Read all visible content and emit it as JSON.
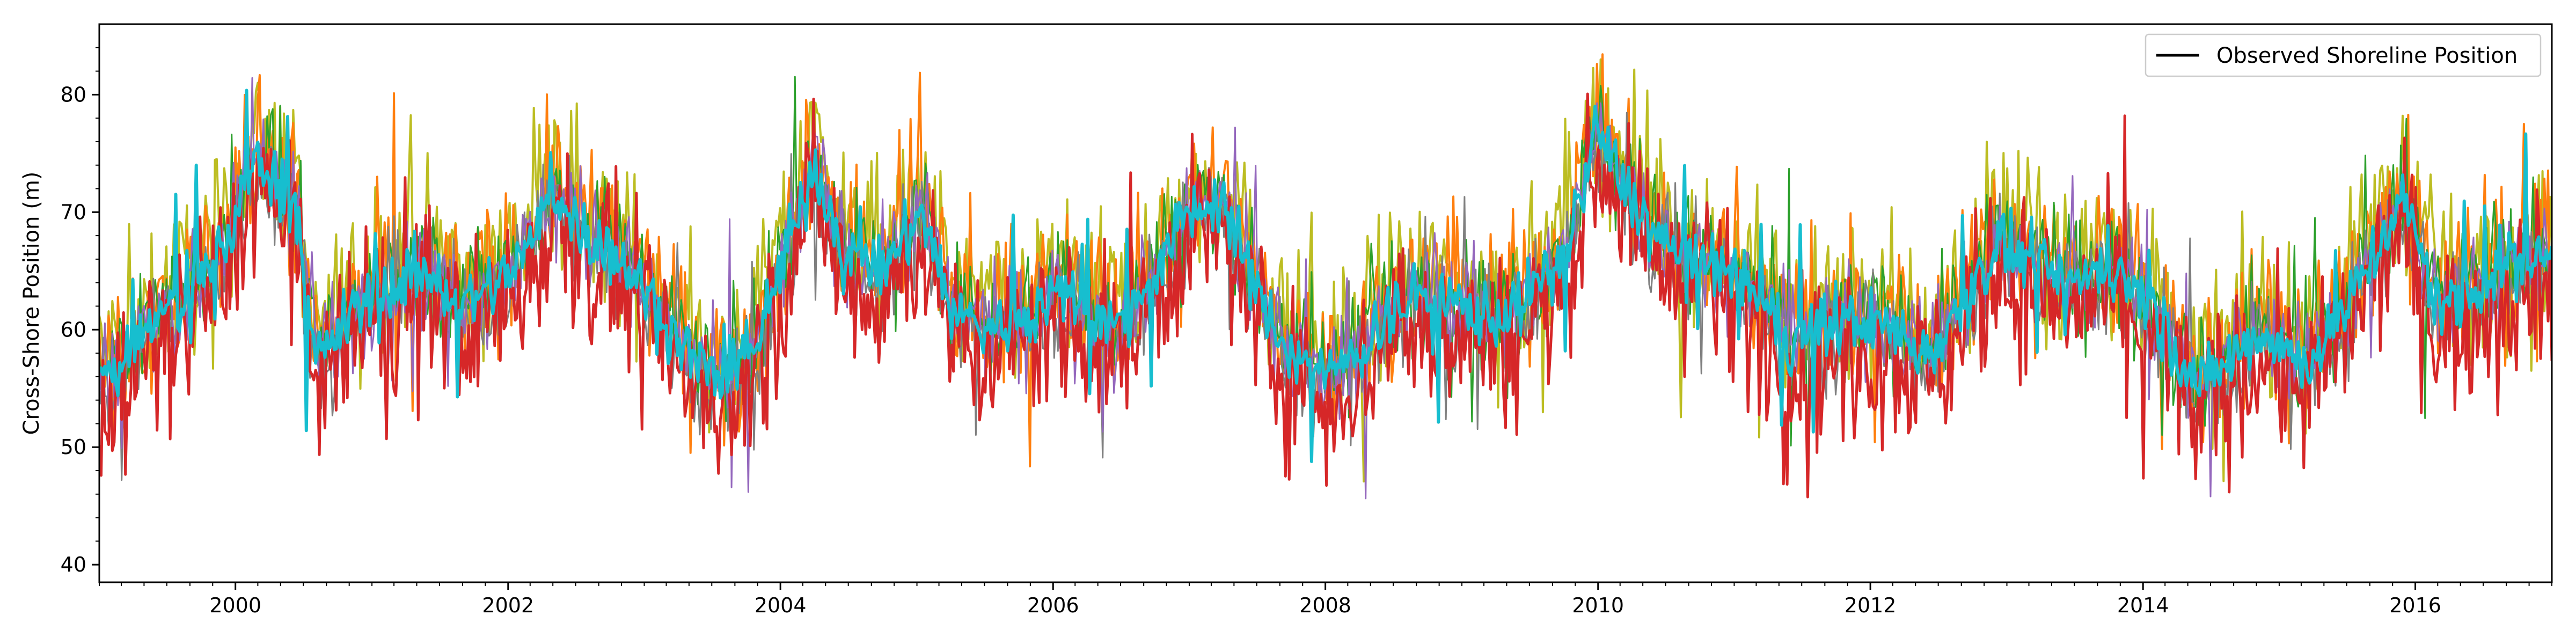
{
  "chart_data": {
    "type": "line",
    "title": "",
    "xlabel": "",
    "ylabel": "Cross-Shore Position (m)",
    "xlim": [
      "1999-01-01",
      "2017-01-01"
    ],
    "ylim": [
      38.5,
      86
    ],
    "x_ticks": [
      "2000",
      "2002",
      "2004",
      "2006",
      "2008",
      "2010",
      "2012",
      "2014",
      "2016"
    ],
    "y_ticks": [
      40,
      50,
      60,
      70,
      80
    ],
    "grid": false,
    "legend": {
      "position": "top-right",
      "entries": [
        "Observed Shoreline Position"
      ]
    },
    "series_colors": [
      "#bcbd22",
      "#ff7f0e",
      "#2ca02c",
      "#7f7f7f",
      "#9467bd",
      "#d62728",
      "#17becf"
    ],
    "centerline": [
      [
        "1999-01-01",
        56
      ],
      [
        "1999-03-01",
        57
      ],
      [
        "1999-06-01",
        61
      ],
      [
        "1999-09-01",
        63
      ],
      [
        "1999-12-01",
        67
      ],
      [
        "2000-01-15",
        71
      ],
      [
        "2000-03-01",
        75
      ],
      [
        "2000-05-01",
        72
      ],
      [
        "2000-06-15",
        70
      ],
      [
        "2000-08-01",
        57
      ],
      [
        "2000-10-01",
        60
      ],
      [
        "2000-12-01",
        62
      ],
      [
        "2001-03-01",
        64
      ],
      [
        "2001-06-01",
        65
      ],
      [
        "2001-09-01",
        62
      ],
      [
        "2001-12-01",
        64
      ],
      [
        "2002-03-01",
        67
      ],
      [
        "2002-05-01",
        72
      ],
      [
        "2002-08-01",
        68
      ],
      [
        "2002-11-01",
        66
      ],
      [
        "2003-02-01",
        62
      ],
      [
        "2003-05-01",
        58
      ],
      [
        "2003-08-01",
        55
      ],
      [
        "2003-11-01",
        59
      ],
      [
        "2004-02-01",
        68
      ],
      [
        "2004-04-01",
        74
      ],
      [
        "2004-07-01",
        66
      ],
      [
        "2004-10-01",
        65
      ],
      [
        "2005-01-15",
        70
      ],
      [
        "2005-04-01",
        62
      ],
      [
        "2005-07-01",
        60
      ],
      [
        "2005-10-01",
        61
      ],
      [
        "2006-01-01",
        63
      ],
      [
        "2006-04-01",
        62
      ],
      [
        "2006-07-01",
        60
      ],
      [
        "2006-10-01",
        65
      ],
      [
        "2007-01-01",
        70
      ],
      [
        "2007-04-01",
        71
      ],
      [
        "2007-07-01",
        63
      ],
      [
        "2007-10-01",
        58
      ],
      [
        "2008-01-01",
        56
      ],
      [
        "2008-04-01",
        58
      ],
      [
        "2008-07-01",
        62
      ],
      [
        "2008-10-01",
        63
      ],
      [
        "2009-01-01",
        62
      ],
      [
        "2009-04-01",
        61
      ],
      [
        "2009-07-01",
        63
      ],
      [
        "2009-10-01",
        66
      ],
      [
        "2010-01-01",
        77
      ],
      [
        "2010-03-01",
        73
      ],
      [
        "2010-06-01",
        68
      ],
      [
        "2010-09-01",
        66
      ],
      [
        "2010-12-01",
        65
      ],
      [
        "2011-03-01",
        63
      ],
      [
        "2011-06-01",
        59
      ],
      [
        "2011-09-01",
        60
      ],
      [
        "2011-12-01",
        61
      ],
      [
        "2012-03-01",
        60
      ],
      [
        "2012-06-01",
        58
      ],
      [
        "2012-09-01",
        62
      ],
      [
        "2012-12-01",
        67
      ],
      [
        "2013-03-01",
        66
      ],
      [
        "2013-06-01",
        64
      ],
      [
        "2013-09-01",
        65
      ],
      [
        "2013-12-01",
        64
      ],
      [
        "2014-03-01",
        60
      ],
      [
        "2014-06-01",
        55
      ],
      [
        "2014-09-01",
        58
      ],
      [
        "2014-12-01",
        60
      ],
      [
        "2015-03-01",
        57
      ],
      [
        "2015-06-01",
        60
      ],
      [
        "2015-09-01",
        66
      ],
      [
        "2015-12-01",
        71
      ],
      [
        "2016-03-01",
        62
      ],
      [
        "2016-06-01",
        63
      ],
      [
        "2016-09-01",
        66
      ],
      [
        "2017-01-01",
        66
      ]
    ]
  }
}
